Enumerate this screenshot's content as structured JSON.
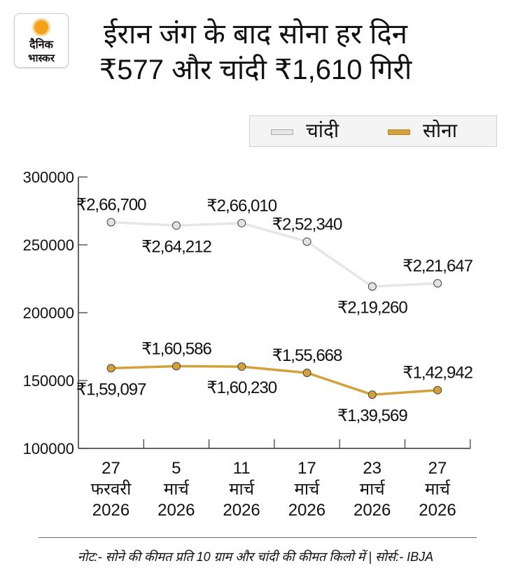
{
  "logo": {
    "line1": "दैनिक",
    "line2": "भास्कर"
  },
  "header": {
    "title": "ईरान जंग के बाद सोना हर दिन ₹577 और चांदी ₹1,610 गिरी"
  },
  "legend": [
    {
      "label": "चांदी",
      "color": "#e6e6e6"
    },
    {
      "label": "सोना",
      "color": "#d4a03a"
    }
  ],
  "chart_data": {
    "type": "line",
    "categories": [
      {
        "day": "27",
        "month": "फरवरी",
        "year": "2026"
      },
      {
        "day": "5",
        "month": "मार्च",
        "year": "2026"
      },
      {
        "day": "11",
        "month": "मार्च",
        "year": "2026"
      },
      {
        "day": "17",
        "month": "मार्च",
        "year": "2026"
      },
      {
        "day": "23",
        "month": "मार्च",
        "year": "2026"
      },
      {
        "day": "27",
        "month": "मार्च",
        "year": "2026"
      }
    ],
    "ylim": [
      100000,
      300000
    ],
    "yticks": [
      "100000",
      "150000",
      "200000",
      "250000",
      "300000"
    ],
    "series": [
      {
        "name": "चांदी",
        "color": "#e6e6e6",
        "values": [
          266700,
          264212,
          266010,
          252340,
          219260,
          221647
        ],
        "labels": [
          "₹2,66,700",
          "₹2,64,212",
          "₹2,66,010",
          "₹2,52,340",
          "₹2,19,260",
          "₹2,21,647"
        ],
        "label_pos": [
          "above",
          "below",
          "above",
          "above",
          "below",
          "above"
        ]
      },
      {
        "name": "सोना",
        "color": "#d4a03a",
        "values": [
          159097,
          160586,
          160230,
          155668,
          139569,
          142942
        ],
        "labels": [
          "₹1,59,097",
          "₹1,60,586",
          "₹1,60,230",
          "₹1,55,668",
          "₹1,39,569",
          "₹1,42,942"
        ],
        "label_pos": [
          "below",
          "above",
          "below",
          "above",
          "below",
          "above"
        ]
      }
    ],
    "grid": false,
    "legend_placement": "top-right"
  },
  "footer": {
    "note": "नोट:- सोने की कीमत प्रति 10 ग्राम और चांदी की कीमत किलो में | सोर्स:- IBJA"
  }
}
